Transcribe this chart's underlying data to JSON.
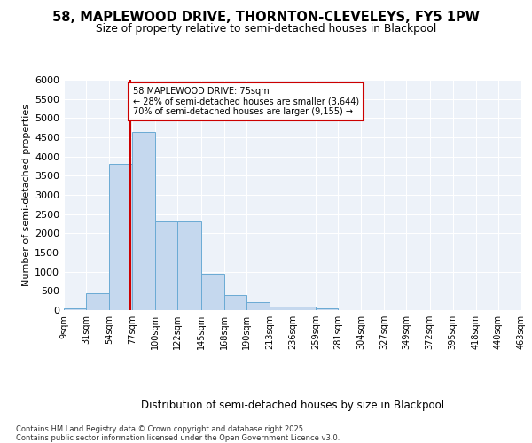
{
  "title1": "58, MAPLEWOOD DRIVE, THORNTON-CLEVELEYS, FY5 1PW",
  "title2": "Size of property relative to semi-detached houses in Blackpool",
  "xlabel": "Distribution of semi-detached houses by size in Blackpool",
  "ylabel": "Number of semi-detached properties",
  "annotation_title": "58 MAPLEWOOD DRIVE: 75sqm",
  "annotation_line1": "← 28% of semi-detached houses are smaller (3,644)",
  "annotation_line2": "70% of semi-detached houses are larger (9,155) →",
  "footer1": "Contains HM Land Registry data © Crown copyright and database right 2025.",
  "footer2": "Contains public sector information licensed under the Open Government Licence v3.0.",
  "property_size": 75,
  "bin_edges": [
    9,
    31,
    54,
    77,
    100,
    122,
    145,
    168,
    190,
    213,
    236,
    259,
    281,
    304,
    327,
    349,
    372,
    395,
    418,
    440,
    463
  ],
  "bin_labels": [
    "9sqm",
    "31sqm",
    "54sqm",
    "77sqm",
    "100sqm",
    "122sqm",
    "145sqm",
    "168sqm",
    "190sqm",
    "213sqm",
    "236sqm",
    "259sqm",
    "281sqm",
    "304sqm",
    "327sqm",
    "349sqm",
    "372sqm",
    "395sqm",
    "418sqm",
    "440sqm",
    "463sqm"
  ],
  "counts": [
    50,
    450,
    3800,
    4650,
    2300,
    2300,
    950,
    400,
    200,
    100,
    100,
    50,
    10,
    5,
    2,
    2,
    1,
    1,
    1,
    0
  ],
  "bar_color": "#c5d8ee",
  "bar_edge_color": "#6aaad4",
  "vline_color": "#cc0000",
  "annotation_edge_color": "#cc0000",
  "bg_color": "#edf2f9",
  "grid_color": "#ffffff",
  "ylim": [
    0,
    6000
  ],
  "yticks": [
    0,
    500,
    1000,
    1500,
    2000,
    2500,
    3000,
    3500,
    4000,
    4500,
    5000,
    5500,
    6000
  ]
}
